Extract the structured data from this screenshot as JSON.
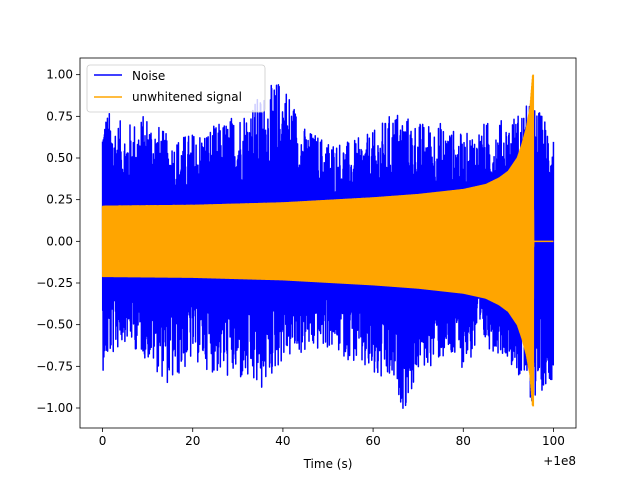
{
  "chart_data": {
    "type": "line",
    "title": "",
    "xlabel": "Time (s)",
    "ylabel": "",
    "x_offset_label": "+1e8",
    "xlim": [
      -5,
      105
    ],
    "ylim": [
      -1.12,
      1.1
    ],
    "x_ticks": [
      0,
      20,
      40,
      60,
      80,
      100
    ],
    "x_tick_labels": [
      "0",
      "20",
      "40",
      "60",
      "80",
      "100"
    ],
    "y_ticks": [
      -1.0,
      -0.75,
      -0.5,
      -0.25,
      0.0,
      0.25,
      0.5,
      0.75,
      1.0
    ],
    "y_tick_labels": [
      "−1.00",
      "−0.75",
      "−0.50",
      "−0.25",
      "0.00",
      "0.25",
      "0.50",
      "0.75",
      "1.00"
    ],
    "grid": false,
    "legend_position": "top-left",
    "series": [
      {
        "name": "Noise",
        "color": "#0000ff",
        "x_range": [
          0,
          100
        ],
        "upper_envelope": [
          [
            0,
            0.82
          ],
          [
            5,
            0.7
          ],
          [
            10,
            0.78
          ],
          [
            15,
            0.62
          ],
          [
            20,
            0.66
          ],
          [
            25,
            0.7
          ],
          [
            30,
            0.78
          ],
          [
            35,
            0.88
          ],
          [
            40,
            1.0
          ],
          [
            45,
            0.68
          ],
          [
            50,
            0.62
          ],
          [
            55,
            0.6
          ],
          [
            60,
            0.66
          ],
          [
            65,
            0.8
          ],
          [
            70,
            0.72
          ],
          [
            75,
            0.72
          ],
          [
            80,
            0.64
          ],
          [
            85,
            0.72
          ],
          [
            90,
            0.74
          ],
          [
            95,
            0.84
          ],
          [
            100,
            0.7
          ]
        ],
        "lower_envelope": [
          [
            0,
            -0.78
          ],
          [
            5,
            -0.6
          ],
          [
            10,
            -0.72
          ],
          [
            15,
            -0.88
          ],
          [
            20,
            -0.72
          ],
          [
            25,
            -0.8
          ],
          [
            30,
            -0.85
          ],
          [
            35,
            -0.92
          ],
          [
            40,
            -0.72
          ],
          [
            45,
            -0.68
          ],
          [
            50,
            -0.65
          ],
          [
            55,
            -0.72
          ],
          [
            60,
            -0.85
          ],
          [
            65,
            -0.9
          ],
          [
            67,
            -1.03
          ],
          [
            70,
            -0.8
          ],
          [
            75,
            -0.72
          ],
          [
            80,
            -0.76
          ],
          [
            85,
            -0.64
          ],
          [
            90,
            -0.7
          ],
          [
            95,
            -0.98
          ],
          [
            100,
            -0.82
          ]
        ]
      },
      {
        "name": "unwhitened signal",
        "color": "#ffa500",
        "envelope": [
          [
            0,
            0.21
          ],
          [
            20,
            0.215
          ],
          [
            40,
            0.23
          ],
          [
            60,
            0.26
          ],
          [
            70,
            0.28
          ],
          [
            80,
            0.31
          ],
          [
            85,
            0.34
          ],
          [
            88,
            0.38
          ],
          [
            90,
            0.42
          ],
          [
            92,
            0.5
          ],
          [
            93,
            0.58
          ],
          [
            94,
            0.68
          ],
          [
            94.8,
            0.8
          ],
          [
            95.4,
            1.0
          ],
          [
            95.6,
            0.0
          ],
          [
            100,
            0.0
          ]
        ],
        "min_value": -0.99,
        "max_value": 1.0,
        "merger_time": 95.5
      }
    ]
  }
}
